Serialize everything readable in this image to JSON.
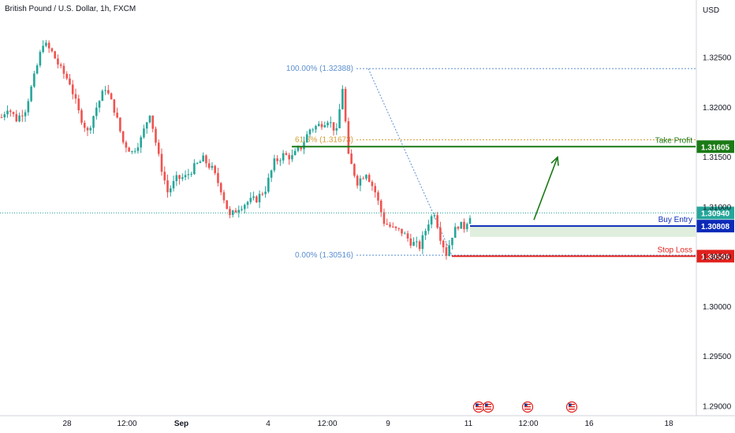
{
  "header": {
    "title": "British Pound / U.S. Dollar, 1h, FXCM"
  },
  "axis": {
    "currency": "USD"
  },
  "colors": {
    "up": "#26a69a",
    "down": "#ef5350",
    "take_profit": "#1b7a16",
    "entry": "#0b2ab8",
    "stop": "#e0201c",
    "current_price": "#26a69a",
    "fib": "#5b8fd1",
    "fib_618": "#d69b32"
  },
  "chart_data": {
    "type": "candlestick",
    "title": "British Pound / U.S. Dollar, 1h, FXCM",
    "ylim": [
      1.2885,
      1.3285
    ],
    "y_ticks": [
      "1.32500",
      "1.32000",
      "1.31500",
      "1.31000",
      "1.30500",
      "1.30000",
      "1.29500",
      "1.29000"
    ],
    "x_ticks": [
      "28",
      "12:00",
      "Sep",
      "4",
      "12:00",
      "9",
      "11",
      "12:00",
      "16",
      "18"
    ],
    "price_path": [
      {
        "t": 0,
        "p": 1.319
      },
      {
        "t": 2,
        "p": 1.32
      },
      {
        "t": 5,
        "p": 1.3188
      },
      {
        "t": 8,
        "p": 1.3198
      },
      {
        "t": 11,
        "p": 1.323
      },
      {
        "t": 14,
        "p": 1.3265
      },
      {
        "t": 17,
        "p": 1.3255
      },
      {
        "t": 20,
        "p": 1.3238
      },
      {
        "t": 23,
        "p": 1.3225
      },
      {
        "t": 26,
        "p": 1.3195
      },
      {
        "t": 29,
        "p": 1.3175
      },
      {
        "t": 32,
        "p": 1.32
      },
      {
        "t": 35,
        "p": 1.322
      },
      {
        "t": 38,
        "p": 1.3198
      },
      {
        "t": 41,
        "p": 1.3165
      },
      {
        "t": 44,
        "p": 1.3155
      },
      {
        "t": 47,
        "p": 1.3168
      },
      {
        "t": 50,
        "p": 1.3195
      },
      {
        "t": 53,
        "p": 1.315
      },
      {
        "t": 56,
        "p": 1.3115
      },
      {
        "t": 59,
        "p": 1.3128
      },
      {
        "t": 62,
        "p": 1.313
      },
      {
        "t": 65,
        "p": 1.314
      },
      {
        "t": 68,
        "p": 1.3148
      },
      {
        "t": 71,
        "p": 1.3138
      },
      {
        "t": 74,
        "p": 1.3118
      },
      {
        "t": 77,
        "p": 1.309
      },
      {
        "t": 80,
        "p": 1.31
      },
      {
        "t": 83,
        "p": 1.3105
      },
      {
        "t": 86,
        "p": 1.3108
      },
      {
        "t": 89,
        "p": 1.3118
      },
      {
        "t": 92,
        "p": 1.3145
      },
      {
        "t": 95,
        "p": 1.3152
      },
      {
        "t": 98,
        "p": 1.315
      },
      {
        "t": 101,
        "p": 1.316
      },
      {
        "t": 104,
        "p": 1.3178
      },
      {
        "t": 107,
        "p": 1.3182
      },
      {
        "t": 110,
        "p": 1.3188
      },
      {
        "t": 113,
        "p": 1.3175
      },
      {
        "t": 115,
        "p": 1.322
      },
      {
        "t": 117,
        "p": 1.315
      },
      {
        "t": 120,
        "p": 1.3125
      },
      {
        "t": 123,
        "p": 1.3135
      },
      {
        "t": 126,
        "p": 1.3115
      },
      {
        "t": 129,
        "p": 1.3085
      },
      {
        "t": 132,
        "p": 1.3078
      },
      {
        "t": 135,
        "p": 1.3075
      },
      {
        "t": 138,
        "p": 1.3065
      },
      {
        "t": 141,
        "p": 1.306
      },
      {
        "t": 144,
        "p": 1.3085
      },
      {
        "t": 146,
        "p": 1.3095
      },
      {
        "t": 148,
        "p": 1.307
      },
      {
        "t": 150,
        "p": 1.3053
      },
      {
        "t": 152,
        "p": 1.3072
      },
      {
        "t": 154,
        "p": 1.3082
      },
      {
        "t": 156,
        "p": 1.308
      },
      {
        "t": 158,
        "p": 1.3092
      }
    ],
    "fib_levels": [
      {
        "label": "100.00% (1.32388)",
        "price": 1.32388
      },
      {
        "label": "61.8% (1.31673)",
        "price": 1.31673
      },
      {
        "label": "0.00% (1.30516)",
        "price": 1.30516
      }
    ],
    "levels": [
      {
        "name": "Take Profit",
        "price": 1.31605,
        "tag": "1.31605",
        "color_key": "take_profit"
      },
      {
        "name": "Buy Entry",
        "price": 1.30808,
        "tag": "1.30808",
        "color_key": "entry"
      },
      {
        "name": "Stop Loss",
        "price": 1.30506,
        "tag": "1.30506",
        "color_key": "stop"
      }
    ],
    "current_price": {
      "price": 1.3094,
      "tag": "1.30940"
    },
    "arrow": {
      "from_price": 1.3087,
      "to_price": 1.315
    },
    "events": [
      "calendar-icon",
      "calendar-icon",
      "calendar-icon",
      "calendar-icon"
    ]
  }
}
